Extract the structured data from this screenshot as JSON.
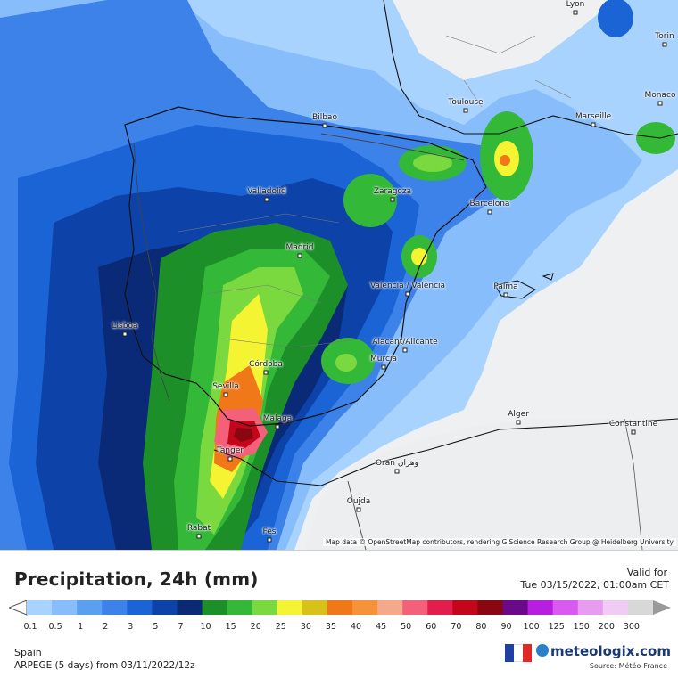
{
  "map": {
    "attribution": "Map data © OpenStreetMap contributors, rendering GIScience Research Group @ Heidelberg University",
    "cities": [
      {
        "name": "Lyon",
        "dx": 645,
        "dy": 4
      },
      {
        "name": "Torin",
        "dx": 745,
        "dy": 40
      },
      {
        "name": "Toulouse",
        "dx": 522,
        "dy": 114
      },
      {
        "name": "Marseille",
        "dx": 665,
        "dy": 130
      },
      {
        "name": "Monaco",
        "dx": 740,
        "dy": 106
      },
      {
        "name": "Bilbao",
        "dx": 364,
        "dy": 131
      },
      {
        "name": "Valladolid",
        "dx": 299,
        "dy": 214
      },
      {
        "name": "Zaragoza",
        "dx": 440,
        "dy": 214
      },
      {
        "name": "Barcelona",
        "dx": 549,
        "dy": 228
      },
      {
        "name": "Madrid",
        "dx": 336,
        "dy": 277
      },
      {
        "name": "Valencia / València",
        "dx": 457,
        "dy": 320
      },
      {
        "name": "Palma",
        "dx": 567,
        "dy": 321
      },
      {
        "name": "Lisboa",
        "dx": 140,
        "dy": 365
      },
      {
        "name": "Alacant/Alicante",
        "dx": 454,
        "dy": 383
      },
      {
        "name": "Córdoba",
        "dx": 298,
        "dy": 408
      },
      {
        "name": "Murcia",
        "dx": 430,
        "dy": 402
      },
      {
        "name": "Sevilla",
        "dx": 253,
        "dy": 433
      },
      {
        "name": "Malaga",
        "dx": 311,
        "dy": 469
      },
      {
        "name": "Alger",
        "dx": 581,
        "dy": 464
      },
      {
        "name": "Constantine",
        "dx": 710,
        "dy": 475
      },
      {
        "name": "Tanger",
        "dx": 258,
        "dy": 505
      },
      {
        "name": "Oran وهران",
        "dx": 445,
        "dy": 519
      },
      {
        "name": "Oujda",
        "dx": 402,
        "dy": 562
      },
      {
        "name": "Rabat",
        "dx": 223,
        "dy": 592
      },
      {
        "name": "Fès",
        "dx": 302,
        "dy": 596
      }
    ]
  },
  "legend": {
    "title": "Precipitation, 24h (mm)",
    "valid_label": "Valid for",
    "valid_time": "Tue 03/15/2022, 01:00am CET",
    "scale": [
      {
        "value": "0.1",
        "color": "#a9d3ff"
      },
      {
        "value": "0.5",
        "color": "#86bdfa"
      },
      {
        "value": "1",
        "color": "#5a9ff0"
      },
      {
        "value": "2",
        "color": "#3d82e8"
      },
      {
        "value": "3",
        "color": "#1a64d6"
      },
      {
        "value": "5",
        "color": "#0d42a8"
      },
      {
        "value": "7",
        "color": "#0a2a78"
      },
      {
        "value": "10",
        "color": "#1c8f28"
      },
      {
        "value": "15",
        "color": "#33b838"
      },
      {
        "value": "20",
        "color": "#7ad93e"
      },
      {
        "value": "25",
        "color": "#f4f432"
      },
      {
        "value": "30",
        "color": "#d8c21a"
      },
      {
        "value": "35",
        "color": "#f07818"
      },
      {
        "value": "40",
        "color": "#f6923a"
      },
      {
        "value": "45",
        "color": "#f3a98a"
      },
      {
        "value": "50",
        "color": "#f2607a"
      },
      {
        "value": "60",
        "color": "#e21f4c"
      },
      {
        "value": "70",
        "color": "#c3061a"
      },
      {
        "value": "80",
        "color": "#8a0610"
      },
      {
        "value": "90",
        "color": "#6a0a8a"
      },
      {
        "value": "100",
        "color": "#b81ee0"
      },
      {
        "value": "125",
        "color": "#d85af0"
      },
      {
        "value": "150",
        "color": "#e79cf0"
      },
      {
        "value": "200",
        "color": "#f0ccf5"
      },
      {
        "value": "300",
        "color": "#d8d8d8"
      }
    ],
    "region": "Spain",
    "model": "ARPEGE (5 days) from 03/11/2022/12z",
    "brand": "meteologix.com",
    "source": "Source: Météo-France"
  }
}
